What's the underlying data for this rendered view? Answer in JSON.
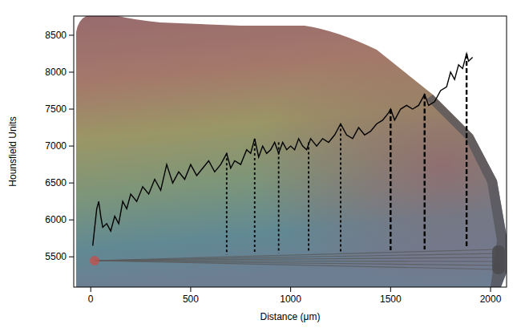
{
  "chart_data": {
    "type": "line",
    "x_label": "Distance (μm)",
    "y_label": "Hounsfield Units",
    "x": [
      10,
      20,
      30,
      40,
      50,
      60,
      80,
      100,
      120,
      140,
      160,
      180,
      200,
      230,
      260,
      290,
      320,
      350,
      380,
      410,
      440,
      470,
      500,
      530,
      560,
      590,
      620,
      650,
      680,
      700,
      720,
      750,
      780,
      800,
      820,
      840,
      860,
      880,
      900,
      920,
      940,
      960,
      980,
      1000,
      1020,
      1040,
      1060,
      1080,
      1100,
      1130,
      1160,
      1190,
      1220,
      1250,
      1280,
      1310,
      1340,
      1370,
      1400,
      1430,
      1460,
      1490,
      1500,
      1520,
      1550,
      1580,
      1610,
      1640,
      1670,
      1690,
      1720,
      1750,
      1780,
      1800,
      1820,
      1840,
      1860,
      1880,
      1890,
      1910
    ],
    "series": [
      {
        "color": "#000000",
        "line_style": "solid",
        "values": [
          5650,
          5900,
          6150,
          6250,
          6050,
          5900,
          5950,
          5850,
          6050,
          5950,
          6250,
          6150,
          6350,
          6250,
          6450,
          6350,
          6550,
          6400,
          6750,
          6500,
          6650,
          6550,
          6750,
          6600,
          6700,
          6800,
          6650,
          6750,
          6900,
          6700,
          6800,
          6750,
          6950,
          6900,
          7100,
          6850,
          7000,
          6900,
          6950,
          7050,
          6900,
          7050,
          6950,
          7000,
          6950,
          7100,
          7000,
          6950,
          7100,
          7000,
          7100,
          7050,
          7150,
          7300,
          7150,
          7100,
          7250,
          7150,
          7200,
          7300,
          7350,
          7450,
          7500,
          7350,
          7500,
          7550,
          7500,
          7550,
          7700,
          7550,
          7600,
          7750,
          7800,
          8000,
          7900,
          8100,
          8050,
          8250,
          8150,
          8200
        ]
      }
    ],
    "drop_lines": {
      "x": [
        680,
        820,
        940,
        1090,
        1250,
        1500,
        1670,
        1880
      ],
      "y_top": [
        6900,
        7100,
        7050,
        7050,
        7300,
        7500,
        7700,
        8250
      ],
      "y_bottom": [
        5530,
        5540,
        5550,
        5560,
        5570,
        5590,
        5600,
        5620
      ]
    },
    "xlim": [
      -85,
      2080
    ],
    "xticks": [
      0,
      500,
      1000,
      1500,
      2000
    ],
    "ylim": [
      5090,
      8760
    ],
    "yticks": [
      5500,
      6000,
      6500,
      7000,
      7500,
      8000,
      8500
    ],
    "grid": false
  }
}
